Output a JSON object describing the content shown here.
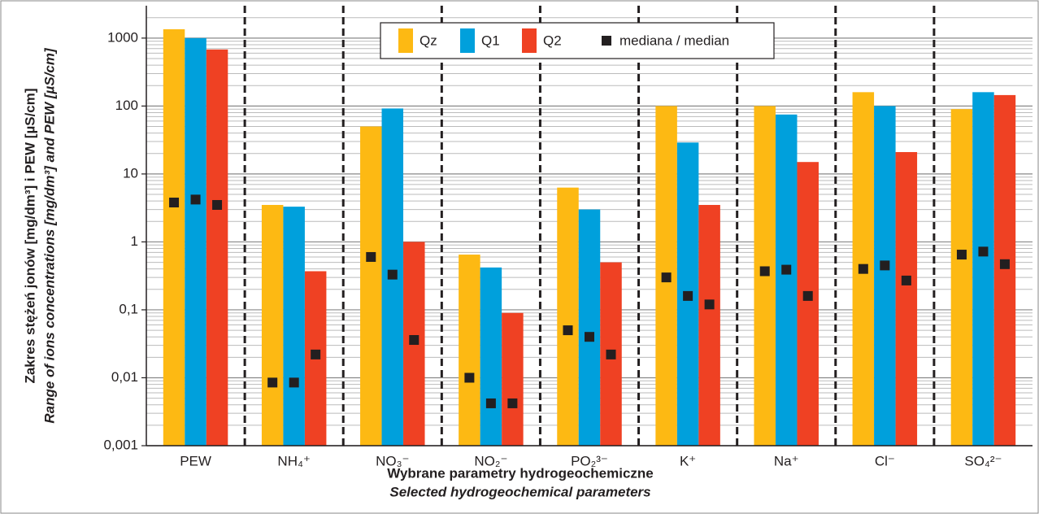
{
  "chart_data": {
    "type": "bar",
    "y_label": "Zakres stężeń jonów [mg/dm³] i PEW [µS/cm]",
    "y_label_en": "Range of ions concentrations [mg/dm³] and PEW [µS/cm]",
    "x_label": "Wybrane parametry hydrogeochemiczne",
    "x_label_en": "Selected hydrogeochemical parameters",
    "categories": [
      "PEW",
      "NH₄⁺",
      "NO₃⁻",
      "NO₂⁻",
      "PO₂³⁻",
      "K⁺",
      "Na⁺",
      "Cl⁻",
      "SO₄²⁻"
    ],
    "series": [
      {
        "name": "Qz",
        "color": "#fdb913",
        "values": [
          1350,
          3.5,
          50,
          0.65,
          6.3,
          100,
          100,
          160,
          90
        ],
        "medians": [
          3.8,
          0.0085,
          0.6,
          0.01,
          0.05,
          0.3,
          0.37,
          0.4,
          0.65
        ]
      },
      {
        "name": "Q1",
        "color": "#00a0dc",
        "values": [
          1000,
          3.3,
          92,
          0.42,
          3.0,
          29,
          75,
          100,
          160
        ],
        "medians": [
          4.2,
          0.0085,
          0.33,
          0.0042,
          0.04,
          0.16,
          0.39,
          0.45,
          0.72
        ]
      },
      {
        "name": "Q2",
        "color": "#ef4123",
        "values": [
          680,
          0.37,
          1.0,
          0.09,
          0.5,
          3.5,
          15,
          21,
          145
        ],
        "medians": [
          3.5,
          0.022,
          0.036,
          0.0042,
          0.022,
          0.12,
          0.16,
          0.27,
          0.47
        ]
      }
    ],
    "median_name": "mediana / median",
    "median_color": "#231f20",
    "log_scale": true,
    "ylim": [
      0.001,
      3000
    ],
    "yticks": [
      {
        "value": 0.001,
        "label": "0,001"
      },
      {
        "value": 0.01,
        "label": "0,01"
      },
      {
        "value": 0.1,
        "label": "0,1"
      },
      1,
      10,
      100,
      1000
    ],
    "grid": true,
    "legend": "top"
  }
}
